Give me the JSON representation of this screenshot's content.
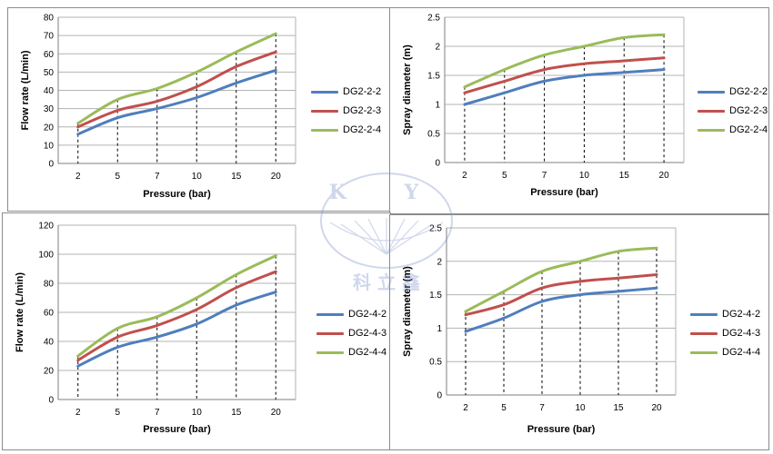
{
  "watermark": {
    "top_text": "K Y",
    "bottom_text": "科 立 鑫",
    "color": "#7a90c8"
  },
  "chart_data": [
    {
      "type": "line",
      "categories": [
        "2",
        "5",
        "7",
        "10",
        "15",
        "20"
      ],
      "xlabel": "Pressure (bar)",
      "ylabel": "Flow rate (L/min)",
      "ylim": [
        0,
        80
      ],
      "yticks": [
        0,
        10,
        20,
        30,
        40,
        50,
        60,
        70,
        80
      ],
      "ytick_labels": [
        "0",
        "10",
        "20",
        "30",
        "40",
        "50",
        "60",
        "70",
        "80"
      ],
      "series": [
        {
          "name": "DG2-2-2",
          "color": "#4f7ebd",
          "values": [
            16,
            25,
            30,
            36,
            44,
            51
          ]
        },
        {
          "name": "DG2-2-3",
          "color": "#c0504d",
          "values": [
            20,
            29,
            34,
            42,
            53,
            61
          ]
        },
        {
          "name": "DG2-2-4",
          "color": "#9bbb59",
          "values": [
            22,
            35,
            41,
            50,
            61,
            71
          ]
        }
      ]
    },
    {
      "type": "line",
      "categories": [
        "2",
        "5",
        "7",
        "10",
        "15",
        "20"
      ],
      "xlabel": "Pressure (bar)",
      "ylabel": "Spray diameter (m)",
      "ylim": [
        0,
        2.5
      ],
      "yticks": [
        0,
        0.5,
        1,
        1.5,
        2,
        2.5
      ],
      "ytick_labels": [
        "0",
        "0.5",
        "1",
        "1.5",
        "2",
        "2.5"
      ],
      "series": [
        {
          "name": "DG2-2-2",
          "color": "#4f7ebd",
          "values": [
            1.0,
            1.2,
            1.4,
            1.5,
            1.55,
            1.6
          ]
        },
        {
          "name": "DG2-2-3",
          "color": "#c0504d",
          "values": [
            1.2,
            1.4,
            1.6,
            1.7,
            1.75,
            1.8
          ]
        },
        {
          "name": "DG2-2-4",
          "color": "#9bbb59",
          "values": [
            1.3,
            1.6,
            1.85,
            2.0,
            2.15,
            2.2
          ]
        }
      ]
    },
    {
      "type": "line",
      "categories": [
        "2",
        "5",
        "7",
        "10",
        "15",
        "20"
      ],
      "xlabel": "Pressure (bar)",
      "ylabel": "Flow rate (L/min)",
      "ylim": [
        0,
        120
      ],
      "yticks": [
        0,
        20,
        40,
        60,
        80,
        100,
        120
      ],
      "ytick_labels": [
        "0",
        "20",
        "40",
        "60",
        "80",
        "100",
        "120"
      ],
      "series": [
        {
          "name": "DG2-4-2",
          "color": "#4f7ebd",
          "values": [
            23,
            36,
            43,
            52,
            65,
            74
          ]
        },
        {
          "name": "DG2-4-3",
          "color": "#c0504d",
          "values": [
            27,
            43,
            51,
            62,
            77,
            88
          ]
        },
        {
          "name": "DG2-4-4",
          "color": "#9bbb59",
          "values": [
            30,
            49,
            57,
            70,
            86,
            99
          ]
        }
      ]
    },
    {
      "type": "line",
      "categories": [
        "2",
        "5",
        "7",
        "10",
        "15",
        "20"
      ],
      "xlabel": "Pressure (bar)",
      "ylabel": "Spray diameter (m)",
      "ylim": [
        0,
        2.5
      ],
      "yticks": [
        0,
        0.5,
        1,
        1.5,
        2,
        2.5
      ],
      "ytick_labels": [
        "0",
        "0.5",
        "1",
        "1.5",
        "2",
        "2.5"
      ],
      "series": [
        {
          "name": "DG2-4-2",
          "color": "#4f7ebd",
          "values": [
            0.95,
            1.15,
            1.4,
            1.5,
            1.55,
            1.6
          ]
        },
        {
          "name": "DG2-4-3",
          "color": "#c0504d",
          "values": [
            1.2,
            1.35,
            1.6,
            1.7,
            1.75,
            1.8
          ]
        },
        {
          "name": "DG2-4-4",
          "color": "#9bbb59",
          "values": [
            1.25,
            1.55,
            1.85,
            2.0,
            2.15,
            2.2
          ]
        }
      ]
    }
  ]
}
